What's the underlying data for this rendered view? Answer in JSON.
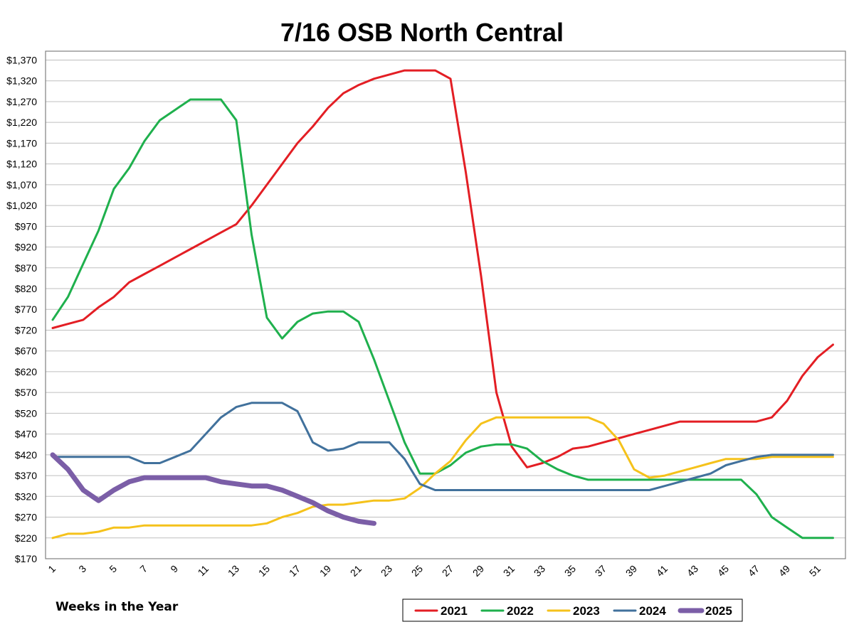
{
  "chart_data": {
    "type": "line",
    "title": "7/16 OSB North Central",
    "xlabel": "Weeks in the Year",
    "ylabel": "",
    "ylim": [
      170,
      1390
    ],
    "xlim": [
      1,
      53
    ],
    "yticks": [
      170,
      220,
      270,
      320,
      370,
      420,
      470,
      520,
      570,
      620,
      670,
      720,
      770,
      820,
      870,
      920,
      970,
      1020,
      1070,
      1120,
      1170,
      1220,
      1270,
      1320,
      1370
    ],
    "ytick_labels": [
      "$170",
      "$220",
      "$270",
      "$320",
      "$370",
      "$420",
      "$470",
      "$520",
      "$570",
      "$620",
      "$670",
      "$720",
      "$770",
      "$820",
      "$870",
      "$920",
      "$970",
      "$1,020",
      "$1,070",
      "$1,120",
      "$1,170",
      "$1,220",
      "$1,270",
      "$1,320",
      "$1,370"
    ],
    "xticks": [
      1,
      3,
      5,
      7,
      9,
      11,
      13,
      15,
      17,
      19,
      21,
      23,
      25,
      27,
      29,
      31,
      33,
      35,
      37,
      39,
      41,
      43,
      45,
      47,
      49,
      51
    ],
    "xtick_labels": [
      "1",
      "3",
      "5",
      "7",
      "9",
      "11",
      "13",
      "15",
      "17",
      "19",
      "21",
      "23",
      "25",
      "27",
      "29",
      "31",
      "33",
      "35",
      "37",
      "39",
      "41",
      "43",
      "45",
      "47",
      "49",
      "51"
    ],
    "grid": true,
    "legend_position": "bottom-right",
    "series": [
      {
        "name": "2021",
        "color": "#e31e24",
        "x": [
          1,
          2,
          3,
          4,
          5,
          6,
          7,
          8,
          9,
          10,
          11,
          12,
          13,
          14,
          15,
          16,
          17,
          18,
          19,
          20,
          21,
          22,
          23,
          24,
          25,
          26,
          27,
          28,
          29,
          30,
          31,
          32,
          33,
          34,
          35,
          36,
          37,
          38,
          39,
          40,
          41,
          42,
          43,
          44,
          45,
          46,
          47,
          48,
          49,
          50,
          51,
          52
        ],
        "values": [
          725,
          735,
          745,
          775,
          800,
          835,
          855,
          875,
          895,
          915,
          935,
          955,
          975,
          1020,
          1070,
          1120,
          1170,
          1210,
          1255,
          1290,
          1310,
          1325,
          1335,
          1345,
          1345,
          1345,
          1325,
          1100,
          850,
          570,
          440,
          390,
          400,
          415,
          435,
          440,
          450,
          460,
          470,
          480,
          490,
          500,
          500,
          500,
          500,
          500,
          500,
          510,
          550,
          610,
          655,
          685
        ]
      },
      {
        "name": "2022",
        "color": "#1fb04d",
        "x": [
          1,
          2,
          3,
          4,
          5,
          6,
          7,
          8,
          9,
          10,
          11,
          12,
          13,
          14,
          15,
          16,
          17,
          18,
          19,
          20,
          21,
          22,
          23,
          24,
          25,
          26,
          27,
          28,
          29,
          30,
          31,
          32,
          33,
          34,
          35,
          36,
          37,
          38,
          39,
          40,
          41,
          42,
          43,
          44,
          45,
          46,
          47,
          48,
          49,
          50,
          51,
          52
        ],
        "values": [
          745,
          800,
          880,
          960,
          1060,
          1110,
          1175,
          1225,
          1250,
          1275,
          1275,
          1275,
          1225,
          950,
          750,
          700,
          740,
          760,
          765,
          765,
          740,
          650,
          550,
          450,
          375,
          375,
          395,
          425,
          440,
          445,
          445,
          435,
          405,
          385,
          370,
          360,
          360,
          360,
          360,
          360,
          360,
          360,
          360,
          360,
          360,
          360,
          325,
          270,
          245,
          220,
          220,
          220
        ]
      },
      {
        "name": "2023",
        "color": "#f5c21b",
        "x": [
          1,
          2,
          3,
          4,
          5,
          6,
          7,
          8,
          9,
          10,
          11,
          12,
          13,
          14,
          15,
          16,
          17,
          18,
          19,
          20,
          21,
          22,
          23,
          24,
          25,
          26,
          27,
          28,
          29,
          30,
          31,
          32,
          33,
          34,
          35,
          36,
          37,
          38,
          39,
          40,
          41,
          42,
          43,
          44,
          45,
          46,
          47,
          48,
          49,
          50,
          51,
          52
        ],
        "values": [
          220,
          230,
          230,
          235,
          245,
          245,
          250,
          250,
          250,
          250,
          250,
          250,
          250,
          250,
          255,
          270,
          280,
          295,
          300,
          300,
          305,
          310,
          310,
          315,
          340,
          375,
          405,
          455,
          495,
          510,
          510,
          510,
          510,
          510,
          510,
          510,
          495,
          455,
          385,
          365,
          370,
          380,
          390,
          400,
          410,
          410,
          410,
          415,
          415,
          415,
          415,
          415
        ]
      },
      {
        "name": "2024",
        "color": "#41719c",
        "x": [
          1,
          2,
          3,
          4,
          5,
          6,
          7,
          8,
          9,
          10,
          11,
          12,
          13,
          14,
          15,
          16,
          17,
          18,
          19,
          20,
          21,
          22,
          23,
          24,
          25,
          26,
          27,
          28,
          29,
          30,
          31,
          32,
          33,
          34,
          35,
          36,
          37,
          38,
          39,
          40,
          41,
          42,
          43,
          44,
          45,
          46,
          47,
          48,
          49,
          50,
          51,
          52
        ],
        "values": [
          415,
          415,
          415,
          415,
          415,
          415,
          400,
          400,
          415,
          430,
          470,
          510,
          535,
          545,
          545,
          545,
          525,
          450,
          430,
          435,
          450,
          450,
          450,
          410,
          350,
          335,
          335,
          335,
          335,
          335,
          335,
          335,
          335,
          335,
          335,
          335,
          335,
          335,
          335,
          335,
          345,
          355,
          365,
          375,
          395,
          405,
          415,
          420,
          420,
          420,
          420,
          420
        ]
      },
      {
        "name": "2025",
        "color": "#7b5ea7",
        "x": [
          1,
          2,
          3,
          4,
          5,
          6,
          7,
          8,
          9,
          10,
          11,
          12,
          13,
          14,
          15,
          16,
          17,
          18,
          19,
          20,
          21,
          22
        ],
        "values": [
          420,
          385,
          335,
          310,
          335,
          355,
          365,
          365,
          365,
          365,
          365,
          355,
          350,
          345,
          345,
          335,
          320,
          305,
          285,
          270,
          260,
          255
        ]
      }
    ]
  }
}
